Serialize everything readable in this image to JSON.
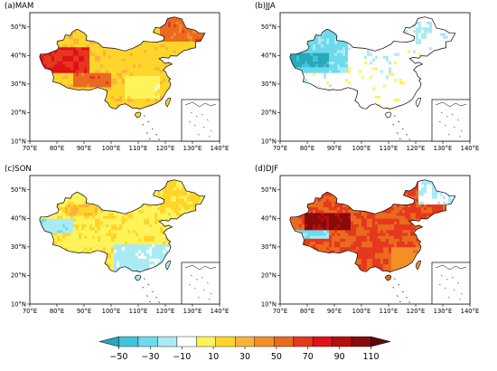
{
  "panels": [
    {
      "label": "(a)MAM",
      "season": "MAM"
    },
    {
      "label": "(b)JJA",
      "season": "JJA"
    },
    {
      "label": "(c)SON",
      "season": "SON"
    },
    {
      "label": "(d)DJF",
      "season": "DJF"
    }
  ],
  "x_ticks": [
    "70°E",
    "80°E",
    "90°E",
    "100°E",
    "110°E",
    "120°E",
    "130°E",
    "140°E"
  ],
  "y_ticks": [
    "10°N",
    "20°N",
    "30°N",
    "40°N",
    "50°N"
  ],
  "colorbar": {
    "tick_labels": [
      "−50",
      "−30",
      "−10",
      "10",
      "30",
      "50",
      "70",
      "90",
      "110"
    ],
    "colors": [
      "#2aa7b8",
      "#3ec5dc",
      "#6fd9ec",
      "#a9ebf4",
      "#ffffff",
      "#fff35a",
      "#ffd52b",
      "#f8b43a",
      "#f38f27",
      "#ea6a1f",
      "#e4391d",
      "#e0111a",
      "#b80e0e",
      "#8a0a0a",
      "#5f0707"
    ]
  }
}
